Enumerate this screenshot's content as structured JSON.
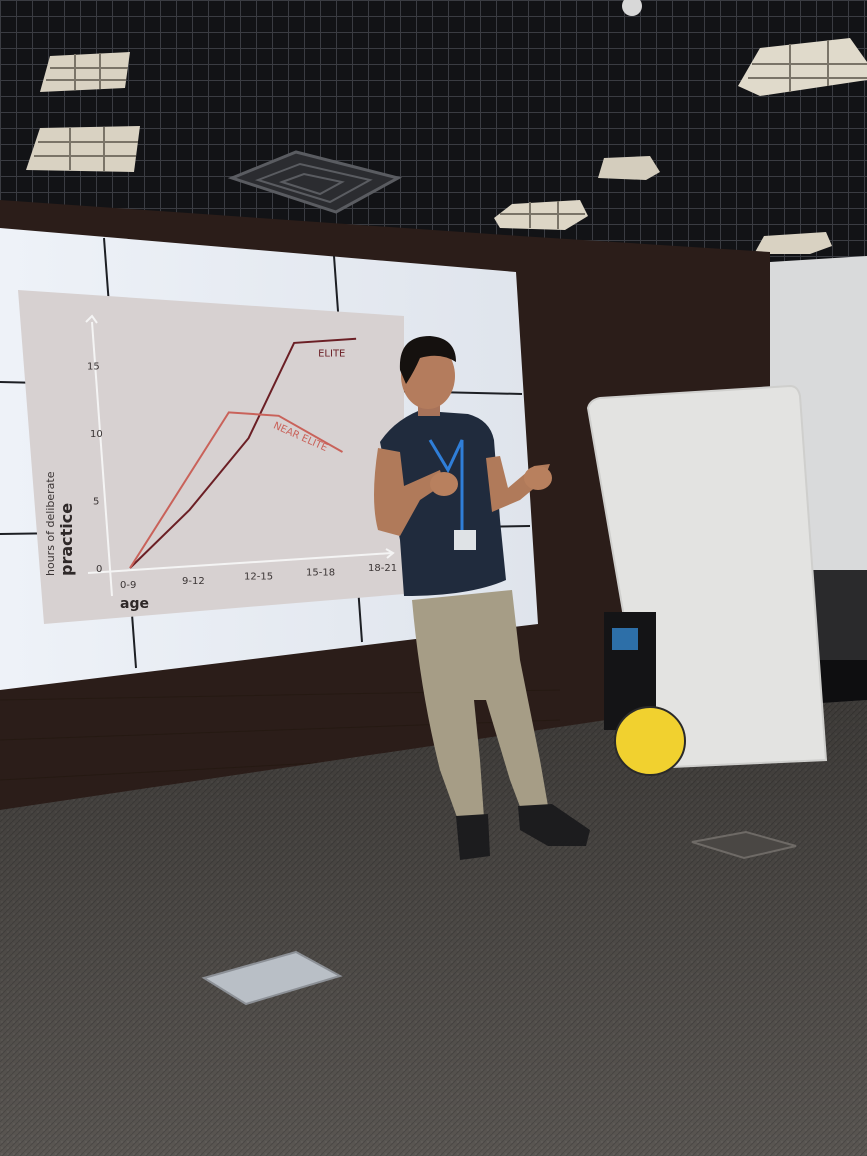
{
  "slide": {
    "axis_label_y_small": "hours of deliberate",
    "axis_label_y_big": "practice",
    "axis_label_x": "age",
    "series_labels": [
      "ELITE",
      "NEAR ELITE"
    ]
  },
  "chart_data": {
    "type": "line",
    "categories": [
      "0-9",
      "9-12",
      "12-15",
      "15-18",
      "18-21"
    ],
    "y_ticks": [
      0,
      5,
      10,
      15
    ],
    "ylim": [
      0,
      15
    ],
    "xlabel": "age",
    "ylabel": "hours of deliberate practice",
    "series": [
      {
        "name": "ELITE",
        "color": "#6b1f25",
        "x": [
          0,
          1,
          2,
          2.8,
          3.8
        ],
        "values": [
          0,
          4,
          9,
          15.8,
          15.8
        ]
      },
      {
        "name": "NEAR ELITE",
        "color": "#c9625a",
        "x": [
          0,
          1.7,
          2.5,
          3.5
        ],
        "values": [
          0,
          11,
          10.5,
          7.5
        ]
      }
    ],
    "grid": false,
    "legend": "inline labels at line ends"
  },
  "colors": {
    "ceiling": "#111215",
    "wall": "#2a1b17",
    "floor": "#5d5955",
    "screen": "#e4e8ee",
    "slide_panel": "#d5cfcf",
    "whiteboard": "#e2e2e0",
    "yellow_disc": "#f2d12e",
    "shirt": "#1f2a3c",
    "trousers": "#a59c85"
  }
}
